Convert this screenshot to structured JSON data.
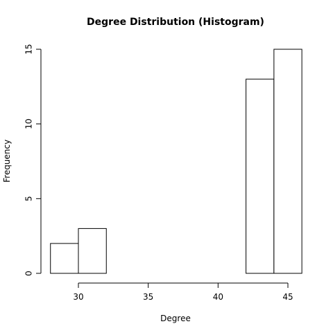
{
  "chart_data": {
    "type": "bar",
    "title": "Degree Distribution (Histogram)",
    "xlabel": "Degree",
    "ylabel": "Frequency",
    "bins": [
      {
        "start": 28,
        "end": 30,
        "value": 2
      },
      {
        "start": 30,
        "end": 32,
        "value": 3
      },
      {
        "start": 32,
        "end": 34,
        "value": 0
      },
      {
        "start": 34,
        "end": 36,
        "value": 0
      },
      {
        "start": 36,
        "end": 38,
        "value": 0
      },
      {
        "start": 38,
        "end": 40,
        "value": 0
      },
      {
        "start": 40,
        "end": 42,
        "value": 0
      },
      {
        "start": 42,
        "end": 44,
        "value": 13
      },
      {
        "start": 44,
        "end": 46,
        "value": 15
      }
    ],
    "xticks": [
      30,
      35,
      40,
      45
    ],
    "yticks": [
      0,
      5,
      10,
      15
    ],
    "xlim": [
      27.2,
      46.5
    ],
    "ylim": [
      0,
      15
    ],
    "grid": false,
    "bar_fill": "#ffffff",
    "bar_stroke": "#000000"
  }
}
